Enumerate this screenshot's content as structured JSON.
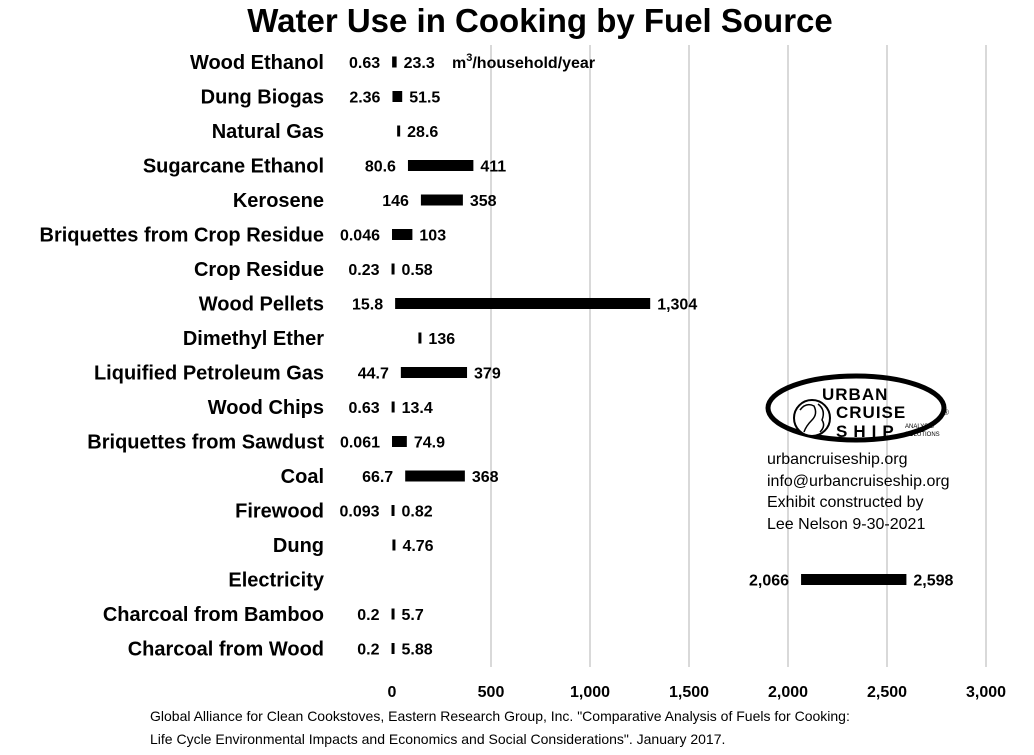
{
  "chart_data": {
    "type": "bar",
    "orientation": "horizontal-range",
    "title": "Water Use in Cooking by Fuel Source",
    "unit_label": "m",
    "unit_sup": "3",
    "unit_suffix": "/household/year",
    "xlim": [
      0,
      3000
    ],
    "xticks": [
      "0",
      "500",
      "1,000",
      "1,500",
      "2,000",
      "2,500",
      "3,000"
    ],
    "grid": true,
    "categories": [
      "Wood Ethanol",
      "Dung Biogas",
      "Natural Gas",
      "Sugarcane Ethanol",
      "Kerosene",
      "Briquettes from Crop Residue",
      "Crop Residue",
      "Wood Pellets",
      "Dimethyl Ether",
      "Liquified Petroleum Gas",
      "Wood Chips",
      "Briquettes from Sawdust",
      "Coal",
      "Firewood",
      "Dung",
      "Electricity",
      "Charcoal from Bamboo",
      "Charcoal from Wood"
    ],
    "series": [
      {
        "values_low": [
          0.63,
          2.36,
          28.6,
          80.6,
          146,
          0.046,
          0.23,
          15.8,
          136,
          44.7,
          0.63,
          0.061,
          66.7,
          0.093,
          4.76,
          2066,
          0.2,
          0.2
        ]
      },
      {
        "values_high": [
          23.3,
          51.5,
          28.6,
          411,
          358,
          103,
          0.58,
          1304,
          136,
          379,
          13.4,
          74.9,
          368,
          0.82,
          4.76,
          2598,
          5.7,
          5.88
        ]
      }
    ],
    "low_labels": [
      "0.63",
      "2.36",
      "",
      "80.6",
      "146",
      "0.046",
      "0.23",
      "15.8",
      "",
      "44.7",
      "0.63",
      "0.061",
      "66.7",
      "0.093",
      "",
      "2,066",
      "0.2",
      "0.2"
    ],
    "high_labels": [
      "23.3",
      "51.5",
      "28.6",
      "411",
      "358",
      "103",
      "0.58",
      "1,304",
      "136",
      "379",
      "13.4",
      "74.9",
      "368",
      "0.82",
      "4.76",
      "2,598",
      "5.7",
      "5.88"
    ],
    "bar_color": "#000000",
    "grid_color": "#d9d9d9"
  },
  "info": {
    "logo_line1": "URBAN",
    "logo_line2": "CRUISE",
    "logo_line3": "SHIP",
    "logo_sub1": "ANALYSIS",
    "logo_sub2": "SOLUTIONS",
    "logo_reg": "®",
    "lines": [
      "urbancruiseship.org",
      "info@urbancruiseship.org",
      "Exhibit constructed by",
      "Lee Nelson 9-30-2021"
    ]
  },
  "source": {
    "line1": "Global Alliance for Clean Cookstoves, Eastern Research Group, Inc. \"Comparative Analysis of Fuels for Cooking:",
    "line2": "Life Cycle Environmental Impacts and Economics and Social Considerations\". January 2017."
  }
}
